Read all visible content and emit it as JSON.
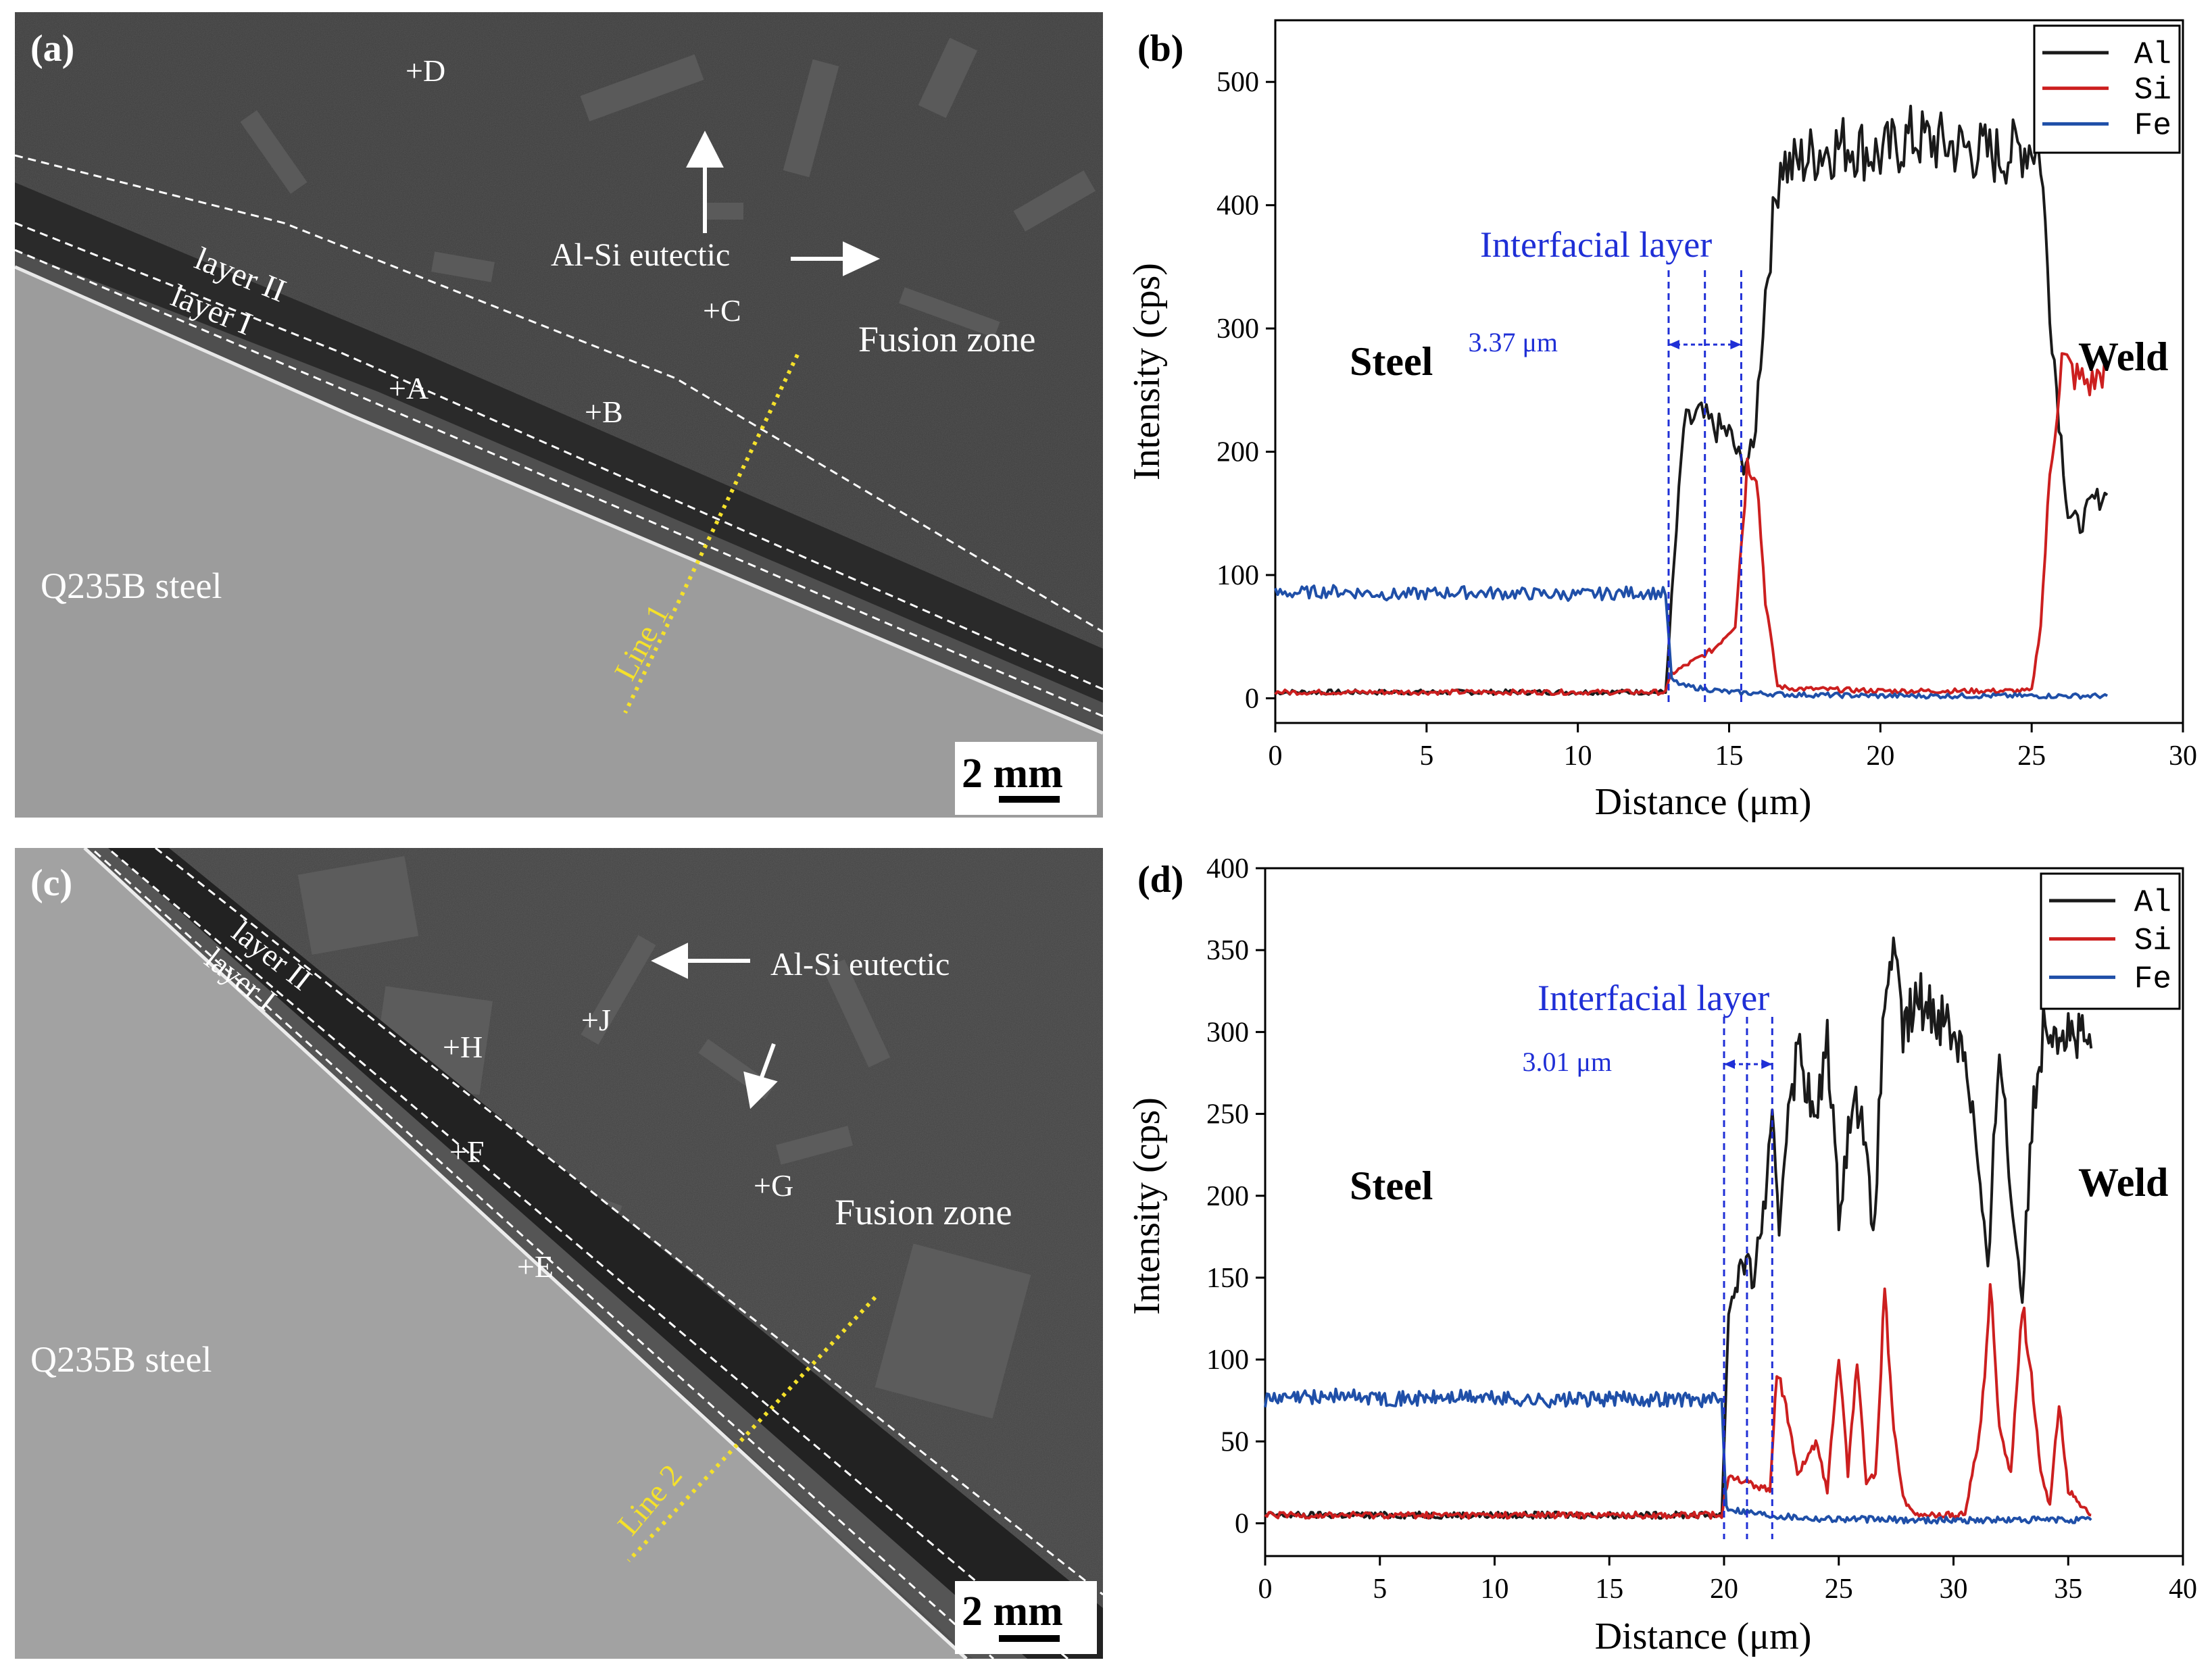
{
  "panels": {
    "a": {
      "label": "(a)",
      "substrate_label": "Q235B steel",
      "zone_label": "Fusion zone",
      "eutectic_label": "Al-Si eutectic",
      "layer2_label": "layer II",
      "layer1_label": "layer I",
      "line_label": "Line 1",
      "points": [
        "+A",
        "+B",
        "+C",
        "+D"
      ],
      "scale_label": "2 mm"
    },
    "c": {
      "label": "(c)",
      "substrate_label": "Q235B steel",
      "zone_label": "Fusion zone",
      "eutectic_label": "Al-Si eutectic",
      "layer2_label": "layer II",
      "layer1_label": "layer I",
      "line_label": "Line 2",
      "points": [
        "+E",
        "+F",
        "+G",
        "+H",
        "+J"
      ],
      "scale_label": "2 mm"
    },
    "b": {
      "label": "(b)",
      "region_left": "Steel",
      "region_right": "Weld",
      "interfacial_label": "Interfacial layer",
      "thickness_label": "3.37 μm"
    },
    "d": {
      "label": "(d)",
      "region_left": "Steel",
      "region_right": "Weld",
      "interfacial_label": "Interfacial layer",
      "thickness_label": "3.01 μm"
    }
  },
  "chart_data": [
    {
      "panel": "b",
      "type": "line",
      "title": "",
      "xlabel": "Distance (μm)",
      "ylabel": "Intensity (cps)",
      "xlim": [
        0,
        30
      ],
      "ylim": [
        -20,
        550
      ],
      "xticks": [
        0,
        5,
        10,
        15,
        20,
        25,
        30
      ],
      "yticks": [
        0,
        100,
        200,
        300,
        400,
        500
      ],
      "legend_position": "top-right",
      "interface_markers_um": [
        13.0,
        14.2,
        15.4
      ],
      "series": [
        {
          "name": "Al",
          "color": "#1a1a1a",
          "x": [
            0,
            12.9,
            13.1,
            13.5,
            14,
            14.5,
            15,
            15.4,
            15.8,
            16.2,
            16.7,
            17,
            18,
            19,
            20,
            21,
            22,
            23,
            24,
            25,
            25.3,
            25.6,
            25.9,
            26.2,
            26.6,
            27,
            27.5
          ],
          "y": [
            5,
            5,
            80,
            220,
            230,
            220,
            215,
            190,
            200,
            330,
            440,
            430,
            445,
            450,
            440,
            455,
            450,
            445,
            440,
            450,
            440,
            320,
            230,
            150,
            140,
            160,
            165
          ]
        },
        {
          "name": "Si",
          "color": "#cc1f1f",
          "x": [
            0,
            12.9,
            13.1,
            13.8,
            14.5,
            15.2,
            15.6,
            15.9,
            16.2,
            16.6,
            17,
            20,
            25,
            25.3,
            25.6,
            26,
            26.5,
            27,
            27.5
          ],
          "y": [
            5,
            5,
            20,
            30,
            40,
            60,
            190,
            185,
            80,
            10,
            8,
            6,
            6,
            60,
            180,
            275,
            260,
            255,
            270
          ]
        },
        {
          "name": "Fe",
          "color": "#1f4fa8",
          "x": [
            0,
            2,
            4,
            6,
            8,
            10,
            12,
            12.9,
            13.1,
            13.5,
            15,
            17,
            20,
            25,
            27.5
          ],
          "y": [
            85,
            87,
            84,
            86,
            85,
            84,
            86,
            85,
            15,
            10,
            5,
            3,
            2,
            2,
            2
          ]
        }
      ]
    },
    {
      "panel": "d",
      "type": "line",
      "title": "",
      "xlabel": "Distance (μm)",
      "ylabel": "Intensity (cps)",
      "xlim": [
        0,
        40
      ],
      "ylim": [
        -20,
        400
      ],
      "xticks": [
        0,
        5,
        10,
        15,
        20,
        25,
        30,
        35,
        40
      ],
      "yticks": [
        0,
        50,
        100,
        150,
        200,
        250,
        300,
        350,
        400
      ],
      "legend_position": "top-right",
      "interface_markers_um": [
        20.0,
        21.0,
        22.1
      ],
      "series": [
        {
          "name": "Al",
          "color": "#1a1a1a",
          "x": [
            0,
            19.9,
            20.2,
            20.8,
            21.3,
            21.8,
            22.1,
            22.4,
            22.8,
            23.3,
            24,
            24.5,
            25,
            25.5,
            26,
            26.5,
            27,
            27.3,
            27.8,
            28.5,
            29.5,
            30.5,
            31,
            31.5,
            32,
            32.5,
            33,
            33.5,
            34,
            35,
            36
          ],
          "y": [
            5,
            5,
            130,
            160,
            150,
            200,
            240,
            180,
            260,
            290,
            240,
            300,
            190,
            250,
            260,
            170,
            320,
            350,
            300,
            320,
            310,
            290,
            230,
            150,
            300,
            200,
            140,
            260,
            310,
            300,
            290
          ]
        },
        {
          "name": "Si",
          "color": "#cc1f1f",
          "x": [
            0,
            19.9,
            20.2,
            21,
            22,
            22.3,
            22.7,
            23.2,
            24,
            24.5,
            25,
            25.4,
            25.8,
            26.2,
            26.6,
            27,
            27.4,
            27.8,
            28.5,
            30.5,
            31.2,
            31.6,
            32,
            32.5,
            33,
            33.4,
            33.8,
            34.2,
            34.6,
            35,
            36
          ],
          "y": [
            5,
            5,
            30,
            25,
            20,
            95,
            70,
            30,
            50,
            20,
            105,
            30,
            100,
            25,
            30,
            140,
            60,
            15,
            5,
            5,
            60,
            145,
            60,
            30,
            135,
            90,
            30,
            10,
            75,
            20,
            5
          ]
        },
        {
          "name": "Fe",
          "color": "#1f4fa8",
          "x": [
            0,
            3,
            6,
            9,
            12,
            15,
            18,
            19.9,
            20.1,
            20.6,
            22,
            24,
            28,
            32,
            36
          ],
          "y": [
            75,
            78,
            76,
            77,
            75,
            76,
            76,
            75,
            10,
            8,
            5,
            3,
            2,
            2,
            2
          ]
        }
      ]
    }
  ]
}
